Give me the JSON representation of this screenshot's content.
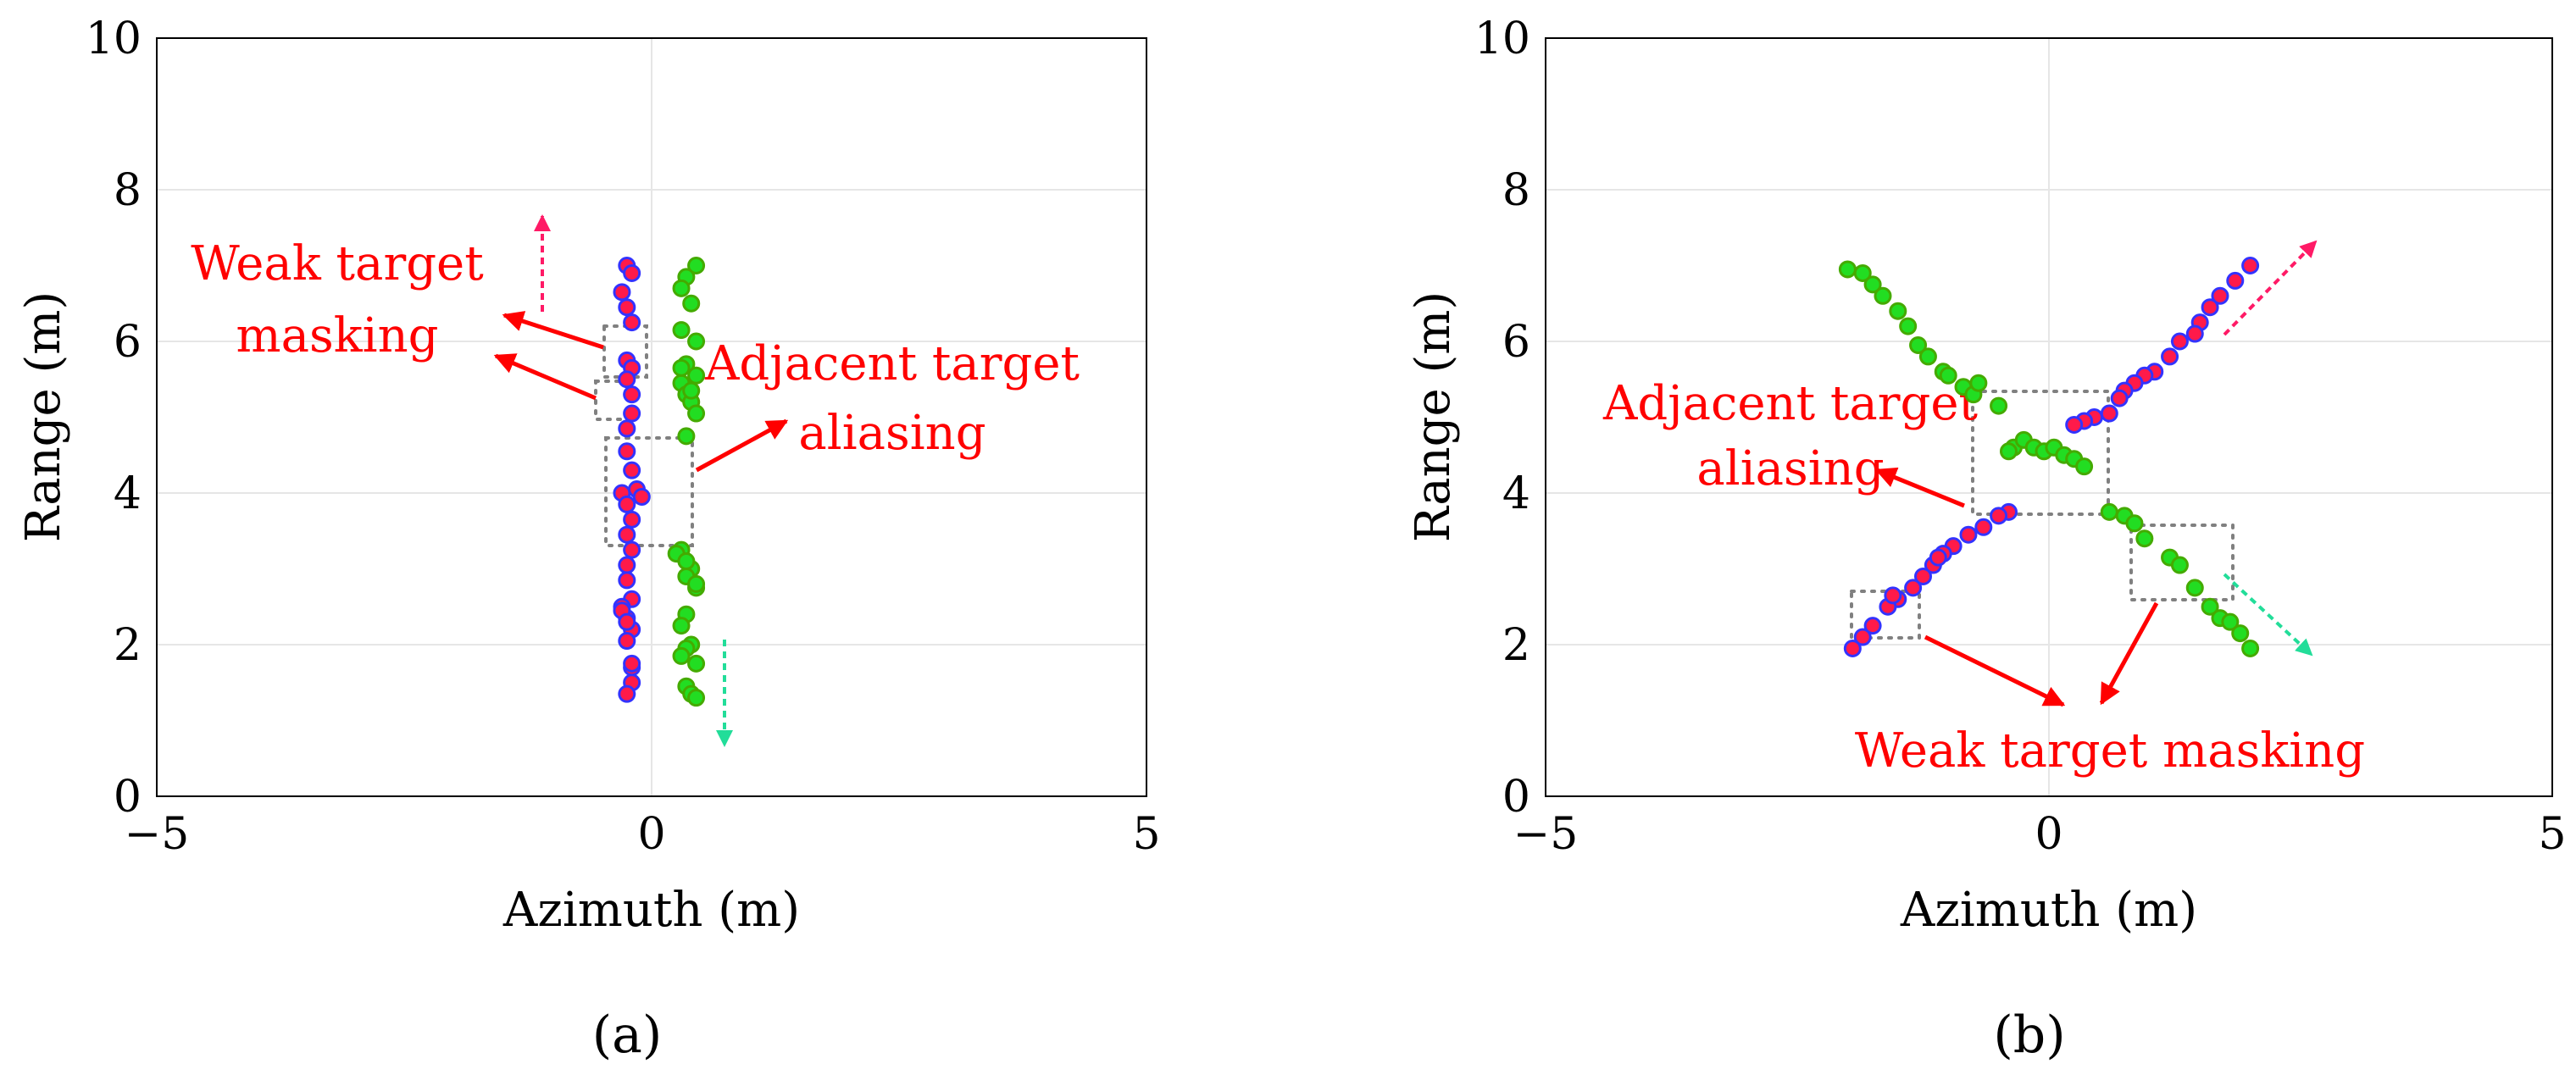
{
  "chart_data": [
    {
      "type": "scatter",
      "panel_label": "a",
      "xlabel": "Azimuth (m)",
      "ylabel": "Range (m)",
      "xlim": [
        -5,
        5
      ],
      "ylim": [
        0,
        10
      ],
      "xticks": [
        "−5",
        "0",
        "5"
      ],
      "yticks": [
        "0",
        "2",
        "4",
        "6",
        "8",
        "10"
      ],
      "grid": true,
      "series": [
        {
          "color": "#ff1a4a",
          "edge": "#3333ff",
          "x": [
            -0.25,
            -0.3,
            -0.2,
            -0.25,
            -0.2,
            -0.25,
            -0.2,
            -0.25,
            -0.2,
            -0.2,
            -0.25,
            -0.25,
            -0.2,
            -0.3,
            -0.25,
            -0.2,
            -0.25,
            -0.15,
            -0.1,
            -0.2,
            -0.25,
            -0.25,
            -0.2,
            -0.3,
            -0.25,
            -0.2,
            -0.25,
            -0.2,
            -0.2,
            -0.25,
            -0.2,
            -0.3,
            -0.25
          ],
          "y": [
            7.0,
            6.65,
            6.9,
            6.45,
            6.25,
            5.75,
            5.65,
            5.5,
            5.3,
            5.05,
            4.85,
            4.55,
            4.3,
            4.0,
            3.85,
            3.65,
            3.45,
            4.05,
            3.95,
            3.25,
            3.05,
            2.85,
            2.6,
            2.5,
            2.35,
            2.2,
            2.05,
            1.7,
            1.5,
            1.35,
            1.75,
            2.45,
            2.3
          ]
        },
        {
          "color": "#22dd22",
          "edge": "#44aa00",
          "x": [
            0.45,
            0.35,
            0.3,
            0.4,
            0.3,
            0.45,
            0.35,
            0.45,
            0.3,
            0.35,
            0.4,
            0.45,
            0.35,
            0.3,
            0.25,
            0.4,
            0.35,
            0.45,
            0.35,
            0.3,
            0.4,
            0.35,
            0.3,
            0.45,
            0.35,
            0.4,
            0.45,
            0.35,
            0.3,
            0.4,
            0.45
          ],
          "y": [
            7.0,
            6.85,
            6.7,
            6.5,
            6.15,
            6.0,
            5.7,
            5.55,
            5.45,
            5.3,
            5.2,
            5.05,
            4.75,
            3.25,
            3.2,
            3.0,
            2.9,
            2.75,
            2.4,
            2.25,
            2.0,
            1.95,
            1.85,
            1.75,
            1.45,
            1.35,
            1.3,
            3.1,
            5.65,
            5.35,
            2.8
          ]
        }
      ]
    },
    {
      "type": "scatter",
      "panel_label": "b",
      "xlabel": "Azimuth (m)",
      "ylabel": "Range (m)",
      "xlim": [
        -5,
        5
      ],
      "ylim": [
        0,
        10
      ],
      "xticks": [
        "−5",
        "0",
        "5"
      ],
      "yticks": [
        "0",
        "2",
        "4",
        "6",
        "8",
        "10"
      ],
      "grid": true,
      "series": [
        {
          "color": "#ff1a4a",
          "edge": "#3333ff",
          "x": [
            2.0,
            1.85,
            1.7,
            1.6,
            1.5,
            1.45,
            1.3,
            1.2,
            1.05,
            0.95,
            0.85,
            0.75,
            0.7,
            0.6,
            0.45,
            0.35,
            0.25,
            -0.4,
            -0.5,
            -0.65,
            -0.8,
            -0.95,
            -1.05,
            -1.15,
            -1.25,
            -1.35,
            -1.5,
            -1.6,
            -1.75,
            -1.85,
            -1.95,
            -1.55,
            -1.1
          ],
          "y": [
            7.0,
            6.8,
            6.6,
            6.45,
            6.25,
            6.1,
            6.0,
            5.8,
            5.6,
            5.55,
            5.45,
            5.35,
            5.25,
            5.05,
            5.0,
            4.95,
            4.9,
            3.75,
            3.7,
            3.55,
            3.45,
            3.3,
            3.2,
            3.05,
            2.9,
            2.75,
            2.6,
            2.5,
            2.25,
            2.1,
            1.95,
            2.65,
            3.15
          ]
        },
        {
          "color": "#22dd22",
          "edge": "#44aa00",
          "x": [
            -2.0,
            -1.85,
            -1.75,
            -1.65,
            -1.5,
            -1.4,
            -1.3,
            -1.2,
            -1.05,
            -1.0,
            -0.85,
            -0.75,
            -0.5,
            -0.35,
            -0.25,
            -0.15,
            -0.05,
            0.05,
            0.15,
            0.25,
            0.35,
            0.6,
            0.75,
            0.85,
            0.95,
            1.2,
            1.3,
            1.45,
            1.6,
            1.7,
            1.8,
            1.9,
            2.0,
            -0.4,
            -0.7
          ],
          "y": [
            6.95,
            6.9,
            6.75,
            6.6,
            6.4,
            6.2,
            5.95,
            5.8,
            5.6,
            5.55,
            5.4,
            5.3,
            5.15,
            4.6,
            4.7,
            4.6,
            4.55,
            4.6,
            4.5,
            4.45,
            4.35,
            3.75,
            3.7,
            3.6,
            3.4,
            3.15,
            3.05,
            2.75,
            2.5,
            2.35,
            2.3,
            2.15,
            1.95,
            4.55,
            5.45
          ]
        }
      ]
    }
  ],
  "annotations": {
    "a": {
      "masking_line1": "Weak target",
      "masking_line2": "masking",
      "aliasing_line1": "Adjacent target",
      "aliasing_line2": "aliasing"
    },
    "b": {
      "aliasing_line1": "Adjacent target",
      "aliasing_line2": "aliasing",
      "masking": "Weak target masking"
    }
  },
  "captions": {
    "a": "(a)",
    "b": "(b)"
  },
  "colors": {
    "annotation": "#ff0000",
    "up_arrow": "#ff1a66",
    "down_arrow": "#22dd99",
    "box": "#808080",
    "grid": "#e6e6e6"
  }
}
